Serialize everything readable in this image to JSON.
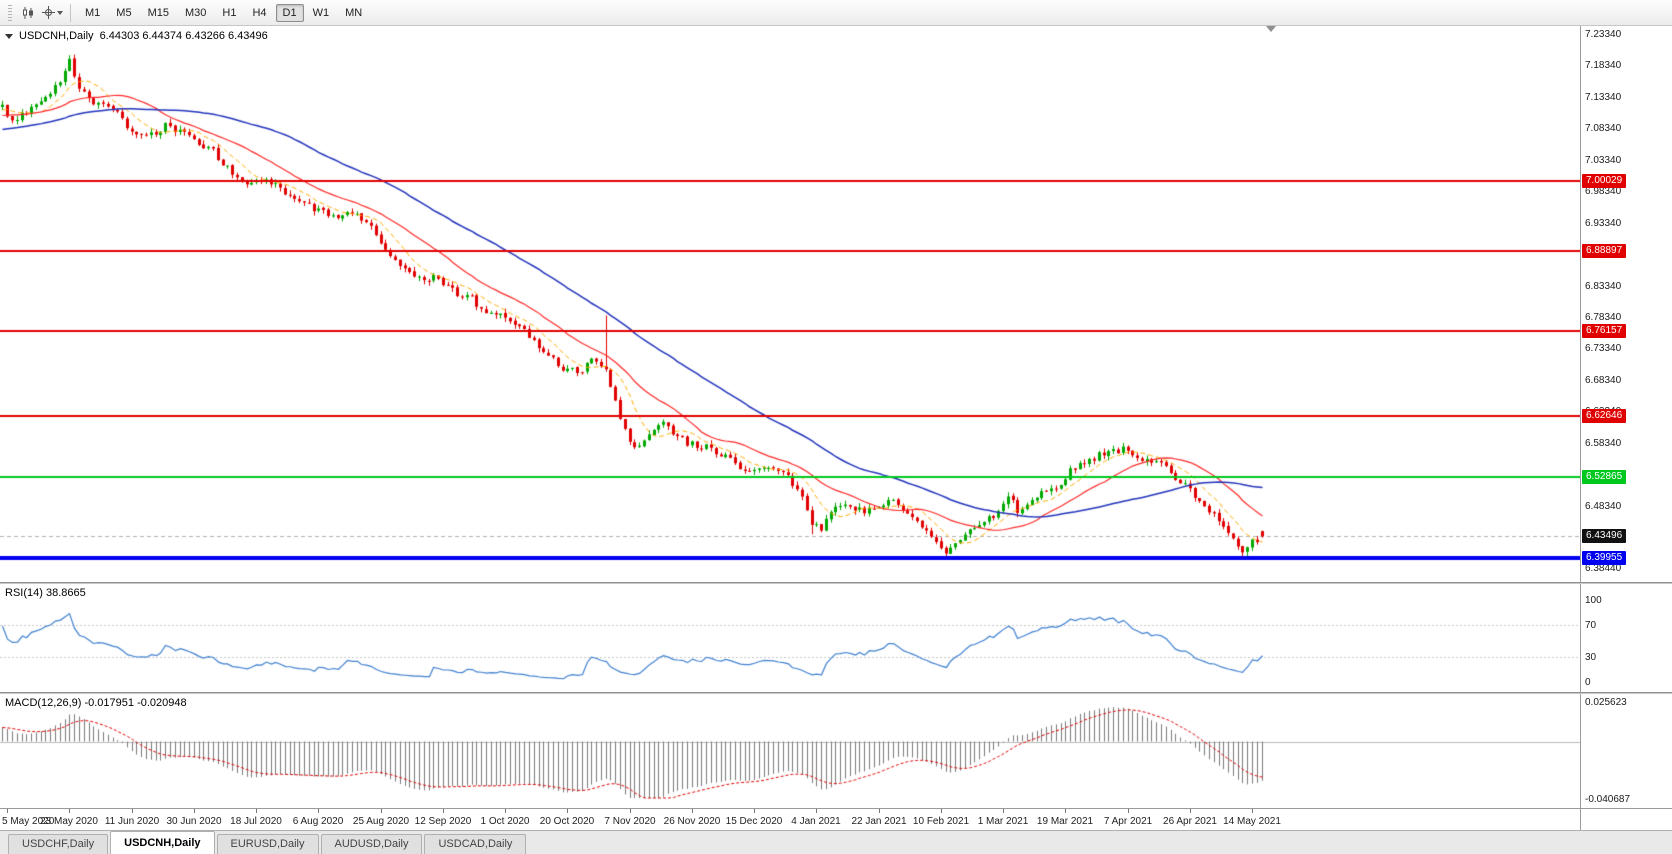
{
  "toolbar": {
    "timeframes": [
      {
        "label": "M1",
        "active": false
      },
      {
        "label": "M5",
        "active": false
      },
      {
        "label": "M15",
        "active": false
      },
      {
        "label": "M30",
        "active": false
      },
      {
        "label": "H1",
        "active": false
      },
      {
        "label": "H4",
        "active": false
      },
      {
        "label": "D1",
        "active": true
      },
      {
        "label": "W1",
        "active": false
      },
      {
        "label": "MN",
        "active": false
      }
    ]
  },
  "chart": {
    "title": {
      "symbol_period": "USDCNH,Daily",
      "ohlc": "6.44303 6.44374 6.43266 6.43496"
    },
    "axis_labels": [
      "7.23340",
      "7.18340",
      "7.13340",
      "7.08340",
      "7.03340",
      "6.98340",
      "6.93340",
      "6.88340",
      "6.83340",
      "6.78340",
      "6.73340",
      "6.68340",
      "6.63340",
      "6.58340",
      "6.53340",
      "6.48340",
      "6.43340",
      "6.38440"
    ],
    "levels": [
      {
        "price": 7.00029,
        "label": "7.00029",
        "color": "#e00000",
        "thickness": 2
      },
      {
        "price": 6.88897,
        "label": "6.88897",
        "color": "#e00000",
        "thickness": 2
      },
      {
        "price": 6.76157,
        "label": "6.76157",
        "color": "#e00000",
        "thickness": 2
      },
      {
        "price": 6.62646,
        "label": "6.62646",
        "color": "#e00000",
        "thickness": 2
      },
      {
        "price": 6.52865,
        "label": "6.52865",
        "color": "#00c81e",
        "thickness": 2
      },
      {
        "price": 6.39955,
        "label": "6.39955",
        "color": "#0000f0",
        "thickness": 4
      }
    ],
    "current_price": {
      "value": 6.43496,
      "label": "6.43496",
      "tag_bg": "#111111"
    },
    "colors": {
      "up": "#00a800",
      "down": "#e00000",
      "ma_fast": "#ff2a2a",
      "ma_slow": "#2233bb",
      "ma_dash": "#ffaa00",
      "bid_line": "#b0b0b0"
    }
  },
  "rsi_panel": {
    "label": "RSI(14) 38.8665",
    "value": 38.8665,
    "axis_labels": [
      {
        "v": 100,
        "text": "100"
      },
      {
        "v": 70,
        "text": "70"
      },
      {
        "v": 30,
        "text": "30"
      },
      {
        "v": 0,
        "text": "0"
      }
    ],
    "guide_levels": [
      70,
      30
    ],
    "line_color": "#4080d0"
  },
  "macd_panel": {
    "label": "MACD(12,26,9) -0.017951 -0.020948",
    "axis_top": "0.025623",
    "axis_bottom": "-0.040687",
    "range": [
      -0.040687,
      0.025623
    ],
    "histogram_color": "#7a7a7a",
    "signal_color": "#e00000"
  },
  "time_axis": {
    "labels": [
      {
        "i": 1,
        "text": "5 May 2020"
      },
      {
        "i": 14,
        "text": "23 May 2020"
      },
      {
        "i": 27,
        "text": "11 Jun 2020"
      },
      {
        "i": 40,
        "text": "30 Jun 2020"
      },
      {
        "i": 53,
        "text": "18 Jul 2020"
      },
      {
        "i": 66,
        "text": "6 Aug 2020"
      },
      {
        "i": 79,
        "text": "25 Aug 2020"
      },
      {
        "i": 92,
        "text": "12 Sep 2020"
      },
      {
        "i": 105,
        "text": "1 Oct 2020"
      },
      {
        "i": 118,
        "text": "20 Oct 2020"
      },
      {
        "i": 131,
        "text": "7 Nov 2020"
      },
      {
        "i": 144,
        "text": "26 Nov 2020"
      },
      {
        "i": 157,
        "text": "15 Dec 2020"
      },
      {
        "i": 170,
        "text": "4 Jan 2021"
      },
      {
        "i": 183,
        "text": "22 Jan 2021"
      },
      {
        "i": 196,
        "text": "10 Feb 2021"
      },
      {
        "i": 209,
        "text": "1 Mar 2021"
      },
      {
        "i": 222,
        "text": "19 Mar 2021"
      },
      {
        "i": 235,
        "text": "7 Apr 2021"
      },
      {
        "i": 248,
        "text": "26 Apr 2021"
      },
      {
        "i": 261,
        "text": "14 May 2021"
      }
    ]
  },
  "tabs": [
    {
      "label": "USDCHF,Daily",
      "active": false
    },
    {
      "label": "USDCNH,Daily",
      "active": true
    },
    {
      "label": "EURUSD,Daily",
      "active": false
    },
    {
      "label": "AUDUSD,Daily",
      "active": false
    },
    {
      "label": "USDCAD,Daily",
      "active": false
    }
  ],
  "chart_data": {
    "type": "candlestick",
    "symbol": "USDCNH",
    "period": "Daily",
    "title": "USDCNH,Daily",
    "bar_count": 264,
    "y_range": [
      6.3844,
      7.2334
    ],
    "last_bar_ohlc": {
      "open": 6.44303,
      "high": 6.44374,
      "low": 6.43266,
      "close": 6.43496
    },
    "price_path_anchors": [
      [
        0,
        7.118
      ],
      [
        2,
        7.094
      ],
      [
        5,
        7.108
      ],
      [
        9,
        7.135
      ],
      [
        12,
        7.16
      ],
      [
        14,
        7.188
      ],
      [
        16,
        7.15
      ],
      [
        19,
        7.124
      ],
      [
        23,
        7.118
      ],
      [
        26,
        7.082
      ],
      [
        30,
        7.07
      ],
      [
        34,
        7.088
      ],
      [
        39,
        7.068
      ],
      [
        44,
        7.046
      ],
      [
        48,
        7.012
      ],
      [
        52,
        6.995
      ],
      [
        55,
        7.004
      ],
      [
        58,
        6.986
      ],
      [
        62,
        6.972
      ],
      [
        65,
        6.956
      ],
      [
        69,
        6.944
      ],
      [
        73,
        6.95
      ],
      [
        78,
        6.916
      ],
      [
        82,
        6.872
      ],
      [
        86,
        6.843
      ],
      [
        91,
        6.846
      ],
      [
        95,
        6.822
      ],
      [
        98,
        6.812
      ],
      [
        101,
        6.792
      ],
      [
        104,
        6.786
      ],
      [
        108,
        6.772
      ],
      [
        112,
        6.738
      ],
      [
        115,
        6.72
      ],
      [
        117,
        6.702
      ],
      [
        120,
        6.696
      ],
      [
        123,
        6.712
      ],
      [
        126,
        6.697
      ],
      [
        128,
        6.648
      ],
      [
        130,
        6.602
      ],
      [
        132,
        6.572
      ],
      [
        135,
        6.598
      ],
      [
        138,
        6.614
      ],
      [
        141,
        6.592
      ],
      [
        143,
        6.582
      ],
      [
        147,
        6.576
      ],
      [
        151,
        6.562
      ],
      [
        154,
        6.547
      ],
      [
        156,
        6.537
      ],
      [
        160,
        6.542
      ],
      [
        164,
        6.528
      ],
      [
        167,
        6.502
      ],
      [
        169,
        6.458
      ],
      [
        171,
        6.443
      ],
      [
        173,
        6.474
      ],
      [
        176,
        6.49
      ],
      [
        179,
        6.476
      ],
      [
        182,
        6.48
      ],
      [
        185,
        6.492
      ],
      [
        188,
        6.476
      ],
      [
        191,
        6.462
      ],
      [
        193,
        6.443
      ],
      [
        195,
        6.427
      ],
      [
        197,
        6.412
      ],
      [
        199,
        6.421
      ],
      [
        202,
        6.446
      ],
      [
        205,
        6.457
      ],
      [
        208,
        6.47
      ],
      [
        210,
        6.5
      ],
      [
        212,
        6.478
      ],
      [
        215,
        6.49
      ],
      [
        218,
        6.506
      ],
      [
        221,
        6.52
      ],
      [
        224,
        6.546
      ],
      [
        227,
        6.556
      ],
      [
        230,
        6.566
      ],
      [
        234,
        6.572
      ],
      [
        237,
        6.561
      ],
      [
        240,
        6.551
      ],
      [
        243,
        6.546
      ],
      [
        246,
        6.521
      ],
      [
        249,
        6.501
      ],
      [
        252,
        6.477
      ],
      [
        255,
        6.456
      ],
      [
        257,
        6.432
      ],
      [
        259,
        6.412
      ],
      [
        261,
        6.428
      ],
      [
        263,
        6.435
      ]
    ],
    "wick_overrides": [
      {
        "i": 14,
        "high": 7.1965
      },
      {
        "i": 126,
        "high": 6.786
      },
      {
        "i": 169,
        "low": 6.438
      },
      {
        "i": 197,
        "low": 6.405
      },
      {
        "i": 259,
        "low": 6.4005
      }
    ],
    "noise": {
      "seed": 9,
      "close_amp": 0.006,
      "open_amp": 0.0012,
      "wick_amp": 0.007
    },
    "warmup_bars": 60,
    "candle_region_fraction": 0.8,
    "moving_averages": [
      {
        "period": 8,
        "style": "dash",
        "color_key": "ma_dash",
        "width": 1
      },
      {
        "period": 20,
        "style": "solid",
        "color_key": "ma_fast",
        "width": 1.2
      },
      {
        "period": 50,
        "style": "solid",
        "color_key": "ma_slow",
        "width": 1.5
      }
    ],
    "horizontal_levels": [
      7.00029,
      6.88897,
      6.76157,
      6.62646,
      6.52865,
      6.39955
    ],
    "indicators": {
      "rsi": {
        "period": 14,
        "current": 38.8665
      },
      "macd": {
        "fast": 12,
        "slow": 26,
        "signal": 9,
        "current": -0.017951,
        "current_signal": -0.020948
      }
    }
  }
}
